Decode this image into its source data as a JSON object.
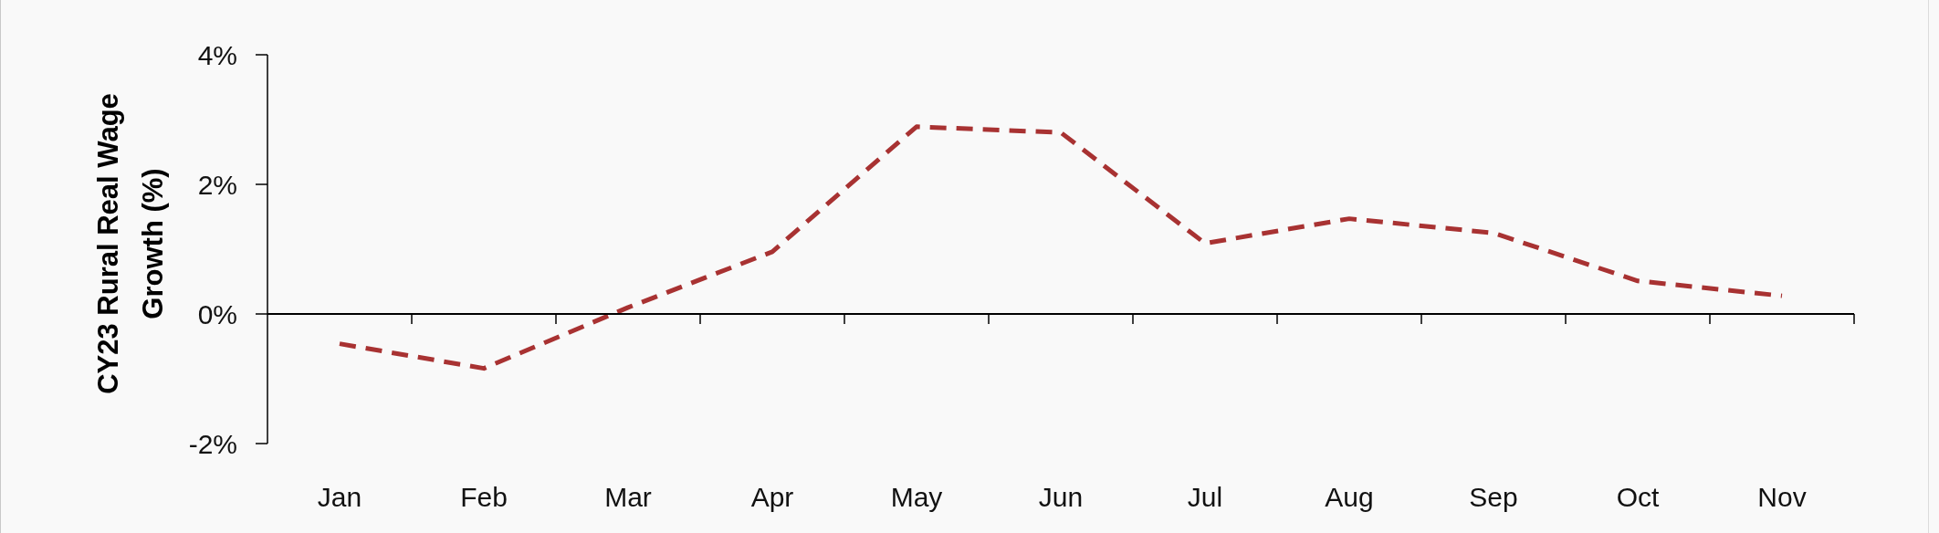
{
  "chart_data": {
    "type": "line",
    "ylabel": "CY23 Rural Real Wage Growth (%)",
    "categories": [
      "Jan",
      "Feb",
      "Mar",
      "Apr",
      "May",
      "Jun",
      "Jul",
      "Aug",
      "Sep",
      "Oct",
      "Nov"
    ],
    "series": [
      {
        "color": "#a83232",
        "values": [
          -0.46,
          -0.84,
          0.1,
          0.96,
          2.89,
          2.8,
          1.09,
          1.47,
          1.25,
          0.51,
          0.28
        ]
      }
    ],
    "ylim": [
      -2,
      4
    ],
    "yticks": [
      {
        "value": -2,
        "label": "-2%"
      },
      {
        "value": 0,
        "label": "0%"
      },
      {
        "value": 2,
        "label": "2%"
      },
      {
        "value": 4,
        "label": "4%"
      }
    ],
    "marker": "none",
    "line_style": "dashed"
  }
}
